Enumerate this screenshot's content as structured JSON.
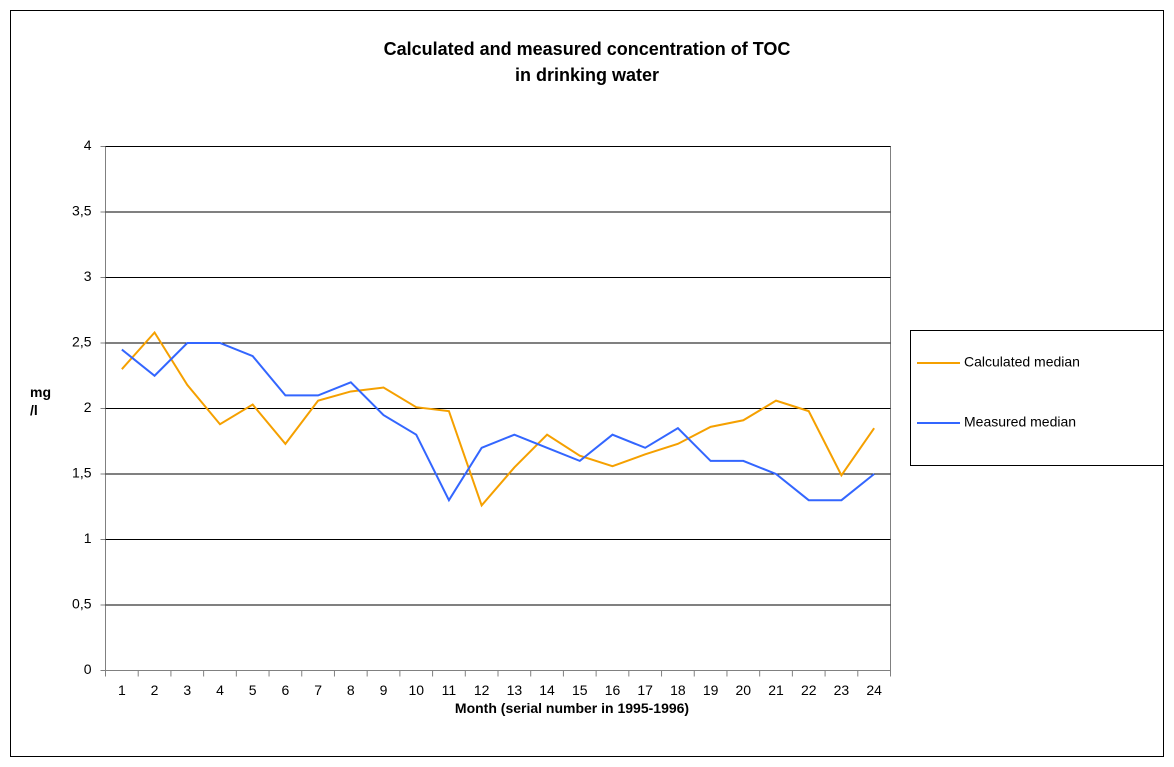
{
  "chart_data": {
    "type": "line",
    "title": "Calculated and measured concentration of TOC\nin drinking water",
    "xlabel": "Month (serial number in 1995-1996)",
    "ylabel": "mg\n/l",
    "categories": [
      1,
      2,
      3,
      4,
      5,
      6,
      7,
      8,
      9,
      10,
      11,
      12,
      13,
      14,
      15,
      16,
      17,
      18,
      19,
      20,
      21,
      22,
      23,
      24
    ],
    "series": [
      {
        "name": "Calculated median",
        "color": "#f5a000",
        "values": [
          2.3,
          2.58,
          2.18,
          1.88,
          2.03,
          1.73,
          2.06,
          2.13,
          2.16,
          2.01,
          1.98,
          1.26,
          1.55,
          1.8,
          1.64,
          1.56,
          1.65,
          1.73,
          1.86,
          1.91,
          2.06,
          1.98,
          1.49,
          1.85
        ]
      },
      {
        "name": "Measured median",
        "color": "#3366ff",
        "values": [
          2.45,
          2.25,
          2.5,
          2.5,
          2.4,
          2.1,
          2.1,
          2.2,
          1.95,
          1.8,
          1.3,
          1.7,
          1.8,
          1.7,
          1.6,
          1.8,
          1.7,
          1.85,
          1.6,
          1.6,
          1.5,
          1.3,
          1.3,
          1.5
        ]
      }
    ],
    "ylim": [
      0,
      4
    ],
    "yticks": [
      0,
      {
        "value": 0.5,
        "label": "0,5"
      },
      1,
      {
        "value": 1.5,
        "label": "1,5"
      },
      2,
      {
        "value": 2.5,
        "label": "2,5"
      },
      3,
      {
        "value": 3.5,
        "label": "3,5"
      },
      4
    ],
    "grid": true,
    "legend": "right"
  }
}
